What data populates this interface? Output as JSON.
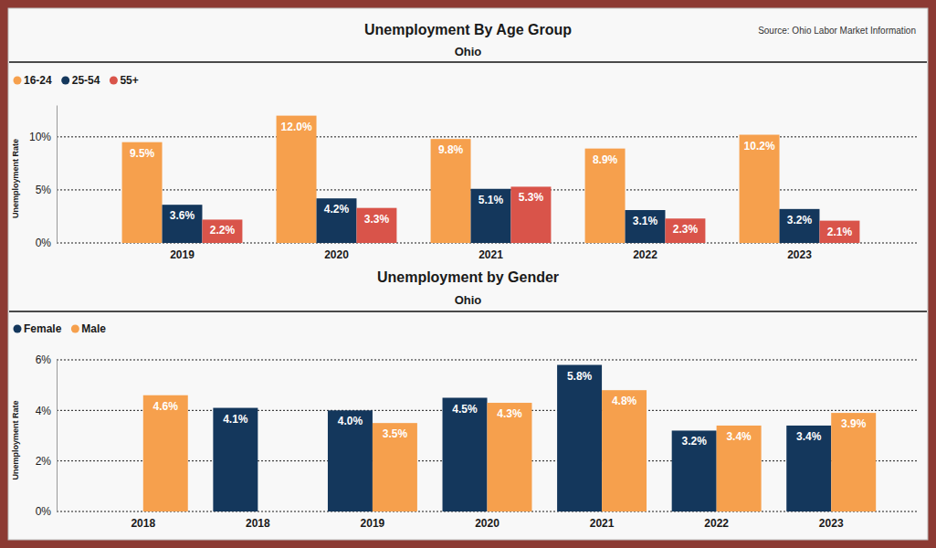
{
  "chart_data": [
    {
      "type": "bar",
      "title": "Unemployment By Age Group",
      "subtitle": "Ohio",
      "source": "Source: Ohio Labor Market Information",
      "y_label": "Unemployment Rate",
      "categories": [
        "2019",
        "2020",
        "2021",
        "2022",
        "2023"
      ],
      "series": [
        {
          "name": "16-24",
          "color": "#f6a04d",
          "values": [
            9.5,
            12.0,
            9.8,
            8.9,
            10.2
          ],
          "value_labels": [
            "9.5%",
            "12.0%",
            "9.8%",
            "8.9%",
            "10.2%"
          ]
        },
        {
          "name": "25-54",
          "color": "#14375c",
          "values": [
            3.6,
            4.2,
            5.1,
            3.1,
            3.2
          ],
          "value_labels": [
            "3.6%",
            "4.2%",
            "5.1%",
            "3.1%",
            "3.2%"
          ]
        },
        {
          "name": "55+",
          "color": "#d9544a",
          "values": [
            2.2,
            3.3,
            5.3,
            2.3,
            2.1
          ],
          "value_labels": [
            "2.2%",
            "3.3%",
            "5.3%",
            "2.3%",
            "2.1%"
          ]
        }
      ],
      "ylim": [
        0,
        13
      ],
      "yticks": [
        {
          "value": 0,
          "label": "0%"
        },
        {
          "value": 5,
          "label": "5%"
        },
        {
          "value": 10,
          "label": "10%"
        }
      ],
      "grid": true,
      "legend": "top-left",
      "data_labels": true
    },
    {
      "type": "bar",
      "title": "Unemployment by Gender",
      "subtitle": "Ohio",
      "y_label": "Unemployment Rate",
      "categories": [
        "2018",
        "2018",
        "2019",
        "2020",
        "2021",
        "2022",
        "2023"
      ],
      "series": [
        {
          "name": "Female",
          "color": "#14375c",
          "values": [
            null,
            4.1,
            4.0,
            4.5,
            5.8,
            3.2,
            3.4
          ],
          "value_labels": [
            null,
            "4.1%",
            "4.0%",
            "4.5%",
            "5.8%",
            "3.2%",
            "3.4%"
          ]
        },
        {
          "name": "Male",
          "color": "#f6a04d",
          "values": [
            4.6,
            null,
            3.5,
            4.3,
            4.8,
            3.4,
            3.9
          ],
          "value_labels": [
            "4.6%",
            null,
            "3.5%",
            "4.3%",
            "4.8%",
            "3.4%",
            "3.9%"
          ]
        }
      ],
      "ylim": [
        0,
        6
      ],
      "yticks": [
        {
          "value": 0,
          "label": "0%"
        },
        {
          "value": 2,
          "label": "2%"
        },
        {
          "value": 4,
          "label": "4%"
        },
        {
          "value": 6,
          "label": "6%"
        }
      ],
      "grid": true,
      "legend": "top-left",
      "data_labels": true
    }
  ]
}
